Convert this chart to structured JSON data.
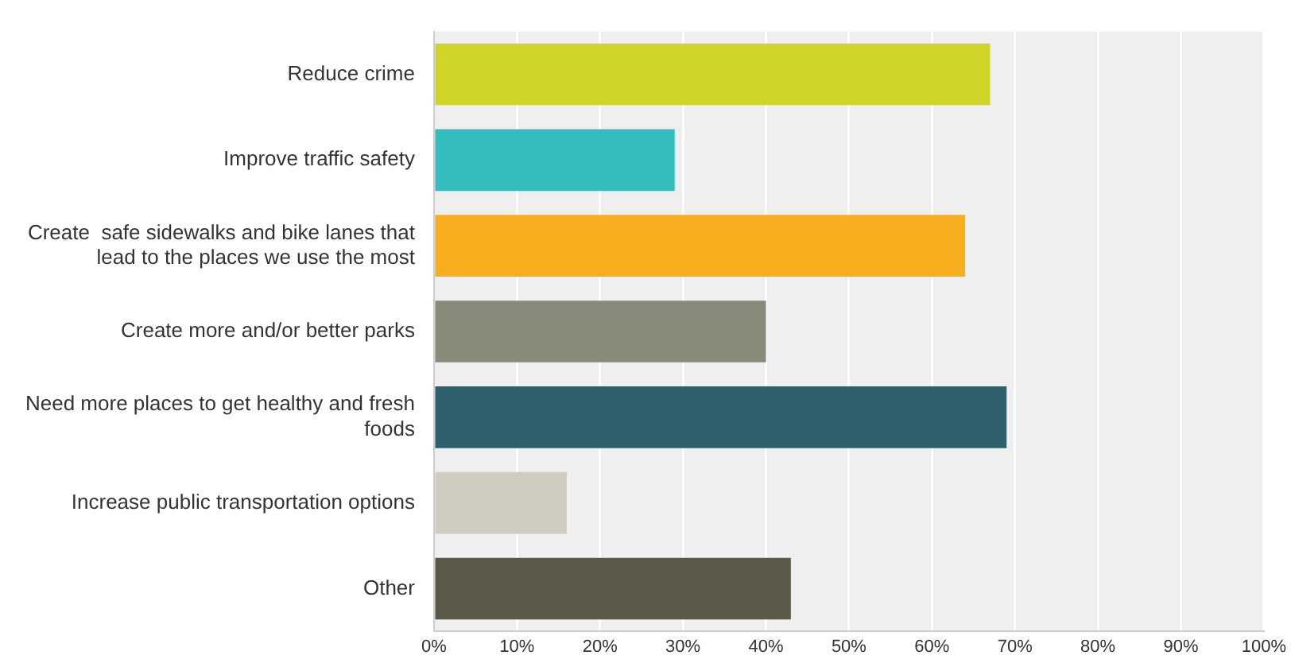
{
  "chart_data": {
    "type": "bar",
    "orientation": "horizontal",
    "categories": [
      "Reduce crime",
      "Improve traffic safety",
      "Create  safe sidewalks and bike lanes that lead to the places we use the most",
      "Create more and/or better parks",
      "Need more places to get healthy and fresh foods",
      "Increase public transportation options",
      "Other"
    ],
    "values": [
      67,
      29,
      64,
      40,
      69,
      16,
      43
    ],
    "colors": [
      "#cfd428",
      "#33bdbf",
      "#f6ae1f",
      "#898a79",
      "#2e606e",
      "#cfcdbf",
      "#5b594a"
    ],
    "xlim": [
      0,
      100
    ],
    "xticks": [
      {
        "value": 0,
        "label": "0%"
      },
      {
        "value": 10,
        "label": "10%"
      },
      {
        "value": 20,
        "label": "20%"
      },
      {
        "value": 30,
        "label": "30%"
      },
      {
        "value": 40,
        "label": "40%"
      },
      {
        "value": 50,
        "label": "50%"
      },
      {
        "value": 60,
        "label": "60%"
      },
      {
        "value": 70,
        "label": "70%"
      },
      {
        "value": 80,
        "label": "80%"
      },
      {
        "value": 90,
        "label": "90%"
      },
      {
        "value": 100,
        "label": "100%"
      }
    ],
    "grid": "x",
    "legend": false
  }
}
